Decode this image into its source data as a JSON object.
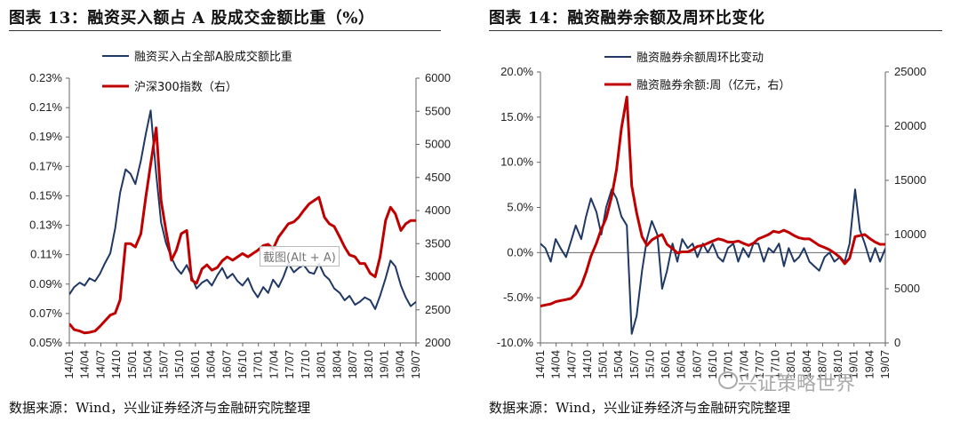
{
  "left": {
    "title": "图表 13：融资买入额占 A 股成交金额比重（%）",
    "source": "数据来源：Wind，兴业证券经济与金融研究院整理",
    "watermark": "截图(Alt + A)"
  },
  "right": {
    "title": "图表 14：融资融券余额及周环比变化",
    "source": "数据来源：Wind，兴业证券经济与金融研究院整理",
    "brand": "兴证策略世界"
  },
  "colors": {
    "navy": "#1f3864",
    "red": "#c00000",
    "axis": "#555555"
  },
  "chart_data": [
    {
      "type": "line",
      "title": "融资买入额占A股成交金额比重",
      "x_tick_labels": [
        "14/01",
        "14/04",
        "14/07",
        "14/10",
        "15/01",
        "15/04",
        "15/07",
        "15/10",
        "16/01",
        "16/04",
        "16/07",
        "16/10",
        "17/01",
        "17/04",
        "17/07",
        "17/10",
        "18/01",
        "18/04",
        "18/07",
        "18/10",
        "19/01",
        "19/04",
        "19/07"
      ],
      "x_range": [
        2014.0,
        2019.667
      ],
      "y_left": {
        "ticks": [
          "0.05%",
          "0.07%",
          "0.09%",
          "0.11%",
          "0.13%",
          "0.15%",
          "0.17%",
          "0.19%",
          "0.21%",
          "0.23%"
        ],
        "range": [
          0.05,
          0.23
        ]
      },
      "y_right": {
        "ticks": [
          "2000",
          "2500",
          "3000",
          "3500",
          "4000",
          "4500",
          "5000",
          "5500",
          "6000"
        ],
        "range": [
          2000,
          6000
        ]
      },
      "series": [
        {
          "name": "融资买入占全部A股成交额比重",
          "axis": "left",
          "color": "#1f3864",
          "x": [
            2014.0,
            2014.08,
            2014.17,
            2014.25,
            2014.33,
            2014.42,
            2014.5,
            2014.58,
            2014.67,
            2014.75,
            2014.83,
            2014.92,
            2015.0,
            2015.08,
            2015.17,
            2015.25,
            2015.33,
            2015.42,
            2015.5,
            2015.58,
            2015.67,
            2015.75,
            2015.83,
            2015.92,
            2016.0,
            2016.08,
            2016.17,
            2016.25,
            2016.33,
            2016.42,
            2016.5,
            2016.58,
            2016.67,
            2016.75,
            2016.83,
            2016.92,
            2017.0,
            2017.08,
            2017.17,
            2017.25,
            2017.33,
            2017.42,
            2017.5,
            2017.58,
            2017.67,
            2017.75,
            2017.83,
            2017.92,
            2018.0,
            2018.08,
            2018.17,
            2018.25,
            2018.33,
            2018.42,
            2018.5,
            2018.58,
            2018.67,
            2018.75,
            2018.83,
            2018.92,
            2019.0,
            2019.08,
            2019.17,
            2019.25,
            2019.33,
            2019.42,
            2019.5,
            2019.58,
            2019.67
          ],
          "y": [
            0.083,
            0.088,
            0.091,
            0.089,
            0.094,
            0.092,
            0.097,
            0.104,
            0.111,
            0.128,
            0.152,
            0.168,
            0.165,
            0.158,
            0.174,
            0.192,
            0.208,
            0.165,
            0.132,
            0.118,
            0.108,
            0.101,
            0.097,
            0.103,
            0.095,
            0.087,
            0.091,
            0.093,
            0.089,
            0.096,
            0.101,
            0.094,
            0.097,
            0.092,
            0.089,
            0.094,
            0.086,
            0.081,
            0.088,
            0.084,
            0.093,
            0.088,
            0.095,
            0.104,
            0.098,
            0.101,
            0.103,
            0.098,
            0.097,
            0.104,
            0.096,
            0.093,
            0.087,
            0.084,
            0.079,
            0.082,
            0.076,
            0.078,
            0.081,
            0.079,
            0.073,
            0.082,
            0.094,
            0.106,
            0.102,
            0.089,
            0.081,
            0.075,
            0.078
          ]
        },
        {
          "name": "沪深300指数（右）",
          "axis": "right",
          "color": "#c00000",
          "x": [
            2014.0,
            2014.08,
            2014.17,
            2014.25,
            2014.33,
            2014.42,
            2014.5,
            2014.58,
            2014.67,
            2014.75,
            2014.83,
            2014.92,
            2015.0,
            2015.08,
            2015.17,
            2015.25,
            2015.33,
            2015.42,
            2015.5,
            2015.58,
            2015.67,
            2015.75,
            2015.83,
            2015.92,
            2016.0,
            2016.08,
            2016.17,
            2016.25,
            2016.33,
            2016.42,
            2016.5,
            2016.58,
            2016.67,
            2016.75,
            2016.83,
            2016.92,
            2017.0,
            2017.08,
            2017.17,
            2017.25,
            2017.33,
            2017.42,
            2017.5,
            2017.58,
            2017.67,
            2017.75,
            2017.83,
            2017.92,
            2018.0,
            2018.08,
            2018.17,
            2018.25,
            2018.33,
            2018.42,
            2018.5,
            2018.58,
            2018.67,
            2018.75,
            2018.83,
            2018.92,
            2019.0,
            2019.08,
            2019.17,
            2019.25,
            2019.33,
            2019.42,
            2019.5,
            2019.58,
            2019.67
          ],
          "y": [
            2290,
            2200,
            2180,
            2150,
            2160,
            2180,
            2250,
            2330,
            2420,
            2450,
            2650,
            3500,
            3500,
            3450,
            3650,
            4200,
            4700,
            5250,
            4150,
            3700,
            3250,
            3400,
            3650,
            3700,
            2950,
            2900,
            3120,
            3180,
            3100,
            3140,
            3240,
            3300,
            3250,
            3300,
            3350,
            3300,
            3350,
            3400,
            3470,
            3490,
            3420,
            3600,
            3700,
            3800,
            3830,
            3900,
            4000,
            4100,
            4150,
            4200,
            3900,
            3800,
            3760,
            3600,
            3450,
            3330,
            3300,
            3200,
            3200,
            3050,
            3000,
            3300,
            3850,
            4050,
            3950,
            3700,
            3800,
            3850,
            3850
          ]
        }
      ]
    },
    {
      "type": "line",
      "title": "融资融券余额及周环比变化",
      "x_tick_labels": [
        "14/01",
        "14/04",
        "14/07",
        "14/10",
        "15/01",
        "15/04",
        "15/07",
        "15/10",
        "16/01",
        "16/04",
        "16/07",
        "16/10",
        "17/01",
        "17/04",
        "17/07",
        "17/10",
        "18/01",
        "18/04",
        "18/07",
        "18/10",
        "19/01",
        "19/04",
        "19/07"
      ],
      "x_range": [
        2014.0,
        2019.667
      ],
      "y_left": {
        "ticks": [
          "-10.0%",
          "-5.0%",
          "0.0%",
          "5.0%",
          "10.0%",
          "15.0%",
          "20.0%"
        ],
        "range": [
          -10,
          20
        ]
      },
      "y_right": {
        "ticks": [
          "0",
          "5000",
          "10000",
          "15000",
          "20000",
          "25000"
        ],
        "range": [
          0,
          25000
        ]
      },
      "series": [
        {
          "name": "融资融券余额周环比变动",
          "axis": "left",
          "color": "#1f3864",
          "x": [
            2014.0,
            2014.08,
            2014.17,
            2014.25,
            2014.33,
            2014.42,
            2014.5,
            2014.58,
            2014.67,
            2014.75,
            2014.83,
            2014.92,
            2015.0,
            2015.08,
            2015.17,
            2015.25,
            2015.33,
            2015.42,
            2015.5,
            2015.58,
            2015.67,
            2015.75,
            2015.83,
            2015.92,
            2016.0,
            2016.08,
            2016.17,
            2016.25,
            2016.33,
            2016.42,
            2016.5,
            2016.58,
            2016.67,
            2016.75,
            2016.83,
            2016.92,
            2017.0,
            2017.08,
            2017.17,
            2017.25,
            2017.33,
            2017.42,
            2017.5,
            2017.58,
            2017.67,
            2017.75,
            2017.83,
            2017.92,
            2018.0,
            2018.08,
            2018.17,
            2018.25,
            2018.33,
            2018.42,
            2018.5,
            2018.58,
            2018.67,
            2018.75,
            2018.83,
            2018.92,
            2019.0,
            2019.08,
            2019.17,
            2019.25,
            2019.33,
            2019.42,
            2019.5,
            2019.58,
            2019.67
          ],
          "y": [
            1.0,
            0.5,
            -1.0,
            1.5,
            0.5,
            -0.5,
            1.2,
            3.0,
            1.5,
            4.0,
            6.0,
            4.5,
            2.0,
            5.0,
            7.0,
            6.0,
            4.0,
            3.0,
            -9.0,
            -7.0,
            -2.0,
            1.5,
            3.5,
            2.0,
            -4.0,
            -2.0,
            1.0,
            -1.0,
            1.5,
            0.5,
            1.0,
            -0.5,
            1.0,
            0.0,
            1.0,
            -0.5,
            -1.0,
            0.5,
            1.0,
            -1.0,
            0.5,
            -0.5,
            1.0,
            1.0,
            -1.0,
            0.5,
            0.0,
            1.0,
            -1.5,
            0.5,
            -1.0,
            -0.5,
            0.5,
            -1.0,
            -1.5,
            -2.0,
            -0.5,
            0.0,
            -1.0,
            -0.5,
            -1.0,
            1.0,
            7.0,
            2.5,
            1.0,
            -1.0,
            0.5,
            -1.0,
            0.5
          ]
        },
        {
          "name": "融资融券余额:周（亿元，右）",
          "axis": "right",
          "color": "#c00000",
          "x": [
            2014.0,
            2014.08,
            2014.17,
            2014.25,
            2014.33,
            2014.42,
            2014.5,
            2014.58,
            2014.67,
            2014.75,
            2014.83,
            2014.92,
            2015.0,
            2015.08,
            2015.17,
            2015.25,
            2015.33,
            2015.42,
            2015.5,
            2015.58,
            2015.67,
            2015.75,
            2015.83,
            2015.92,
            2016.0,
            2016.08,
            2016.17,
            2016.25,
            2016.33,
            2016.42,
            2016.5,
            2016.58,
            2016.67,
            2016.75,
            2016.83,
            2016.92,
            2017.0,
            2017.08,
            2017.17,
            2017.25,
            2017.33,
            2017.42,
            2017.5,
            2017.58,
            2017.67,
            2017.75,
            2017.83,
            2017.92,
            2018.0,
            2018.08,
            2018.17,
            2018.25,
            2018.33,
            2018.42,
            2018.5,
            2018.58,
            2018.67,
            2018.75,
            2018.83,
            2018.92,
            2019.0,
            2019.08,
            2019.17,
            2019.25,
            2019.33,
            2019.42,
            2019.5,
            2019.58,
            2019.67
          ],
          "y": [
            3400,
            3500,
            3600,
            3800,
            3900,
            4000,
            4100,
            4500,
            5300,
            6500,
            8000,
            9200,
            10500,
            11500,
            13500,
            16000,
            19800,
            22700,
            14500,
            12000,
            9800,
            9000,
            9500,
            9800,
            10000,
            9100,
            8700,
            8300,
            8400,
            8400,
            8600,
            8900,
            9000,
            9200,
            9400,
            9600,
            9500,
            9300,
            9300,
            9400,
            9200,
            9000,
            9200,
            9600,
            9800,
            10000,
            10300,
            10200,
            10400,
            10200,
            9900,
            9700,
            9600,
            9600,
            9300,
            9000,
            8800,
            8600,
            8300,
            7900,
            7300,
            7800,
            9800,
            9900,
            10000,
            9600,
            9300,
            9100,
            9100
          ]
        }
      ]
    }
  ]
}
